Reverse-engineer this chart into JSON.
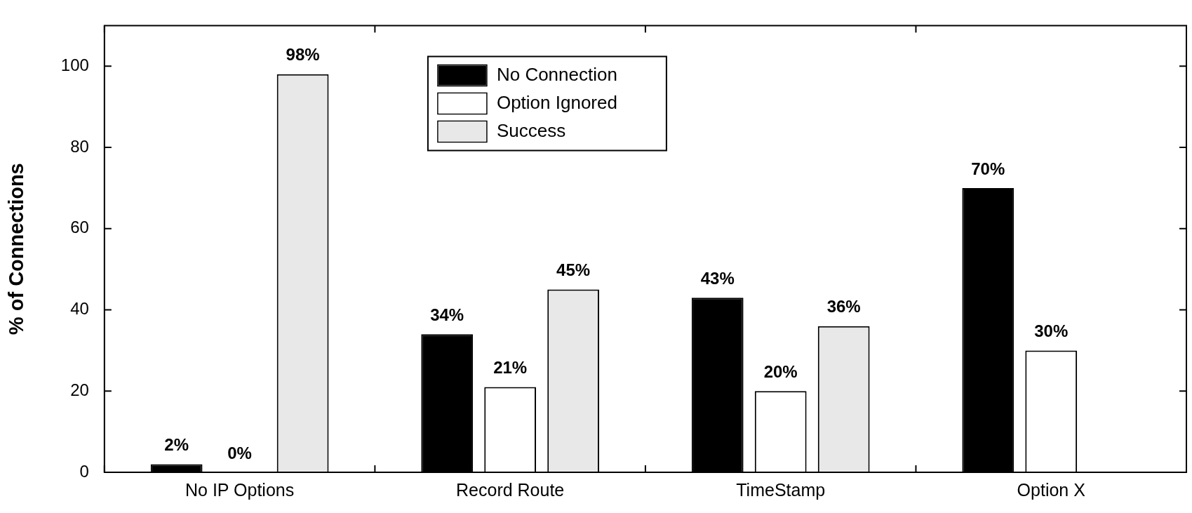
{
  "chart_data": {
    "type": "bar",
    "ylabel": "% of Connections",
    "categories": [
      "No IP Options",
      "Record Route",
      "TimeStamp",
      "Option X"
    ],
    "series": [
      {
        "name": "No Connection",
        "color": "#000000",
        "values": [
          2,
          34,
          43,
          70
        ],
        "value_labels": [
          "2%",
          "34%",
          "43%",
          "70%"
        ]
      },
      {
        "name": "Option Ignored",
        "color": "#ffffff",
        "values": [
          0,
          21,
          20,
          30
        ],
        "value_labels": [
          "0%",
          "21%",
          "20%",
          "30%"
        ]
      },
      {
        "name": "Success",
        "color": "#e8e8e8",
        "values": [
          98,
          45,
          36,
          null
        ],
        "value_labels": [
          "98%",
          "45%",
          "36%",
          null
        ]
      }
    ],
    "ylim": [
      0,
      110
    ],
    "yticks": [
      0,
      20,
      40,
      60,
      80,
      100
    ],
    "grid": false,
    "legend": "top"
  }
}
